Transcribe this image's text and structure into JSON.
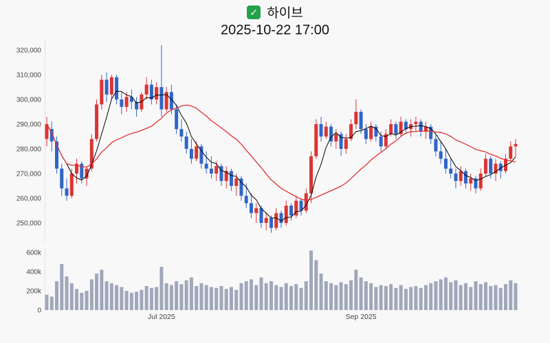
{
  "header": {
    "title": "하이브",
    "timestamp": "2025-10-22 17:00",
    "icon_glyph": "✓",
    "icon_color": "#22a14b"
  },
  "chart_data": {
    "type": "candlestick",
    "title": "하이브",
    "subtitle": "2025-10-22 17:00",
    "legend_position": "none",
    "grid": false,
    "price_axis": {
      "values": [
        320000,
        310000,
        300000,
        290000,
        280000,
        270000,
        260000,
        250000
      ],
      "labels": [
        "320,000",
        "310,000",
        "300,000",
        "290,000",
        "280,000",
        "270,000",
        "260,000",
        "250,000"
      ],
      "ylim": [
        243000,
        325000
      ]
    },
    "volume_axis": {
      "values": [
        600000,
        400000,
        200000,
        0
      ],
      "labels": [
        "600k",
        "400k",
        "200k",
        "0"
      ],
      "ylim": [
        0,
        640000
      ]
    },
    "x_ticks": [
      {
        "index": 23,
        "label": "Jul 2025"
      },
      {
        "index": 63,
        "label": "Sep 2025"
      }
    ],
    "colors": {
      "up": "#dc3434",
      "down": "#2f66c6",
      "volume": "#a0a7ba",
      "tick_text": "#444444",
      "axis_line": "#e2e2e6"
    },
    "moving_averages": [
      {
        "name": "MA5",
        "window": 5,
        "color": "#000000",
        "width": 1
      },
      {
        "name": "MA20",
        "window": 20,
        "color": "#e03030",
        "width": 1.3
      }
    ],
    "ohlcv": [
      [
        284000,
        293000,
        281000,
        290000,
        160000
      ],
      [
        288000,
        291000,
        279000,
        283000,
        140000
      ],
      [
        283000,
        285000,
        270000,
        272000,
        300000
      ],
      [
        272000,
        274000,
        261000,
        264000,
        480000
      ],
      [
        264000,
        268000,
        259000,
        261000,
        350000
      ],
      [
        261000,
        272000,
        260000,
        270000,
        280000
      ],
      [
        270000,
        276000,
        266000,
        274000,
        220000
      ],
      [
        274000,
        275000,
        266000,
        268000,
        180000
      ],
      [
        268000,
        273000,
        265000,
        272000,
        200000
      ],
      [
        272000,
        286000,
        271000,
        284000,
        320000
      ],
      [
        284000,
        300000,
        283000,
        298000,
        380000
      ],
      [
        298000,
        310000,
        296000,
        308000,
        420000
      ],
      [
        308000,
        311000,
        299000,
        302000,
        300000
      ],
      [
        302000,
        310000,
        300000,
        309000,
        280000
      ],
      [
        309000,
        310000,
        298000,
        300000,
        260000
      ],
      [
        300000,
        303000,
        294000,
        297000,
        240000
      ],
      [
        297000,
        303000,
        295000,
        301000,
        200000
      ],
      [
        301000,
        304000,
        296000,
        299000,
        180000
      ],
      [
        299000,
        301000,
        293000,
        296000,
        190000
      ],
      [
        296000,
        303000,
        295000,
        302000,
        210000
      ],
      [
        302000,
        309000,
        300000,
        306000,
        250000
      ],
      [
        306000,
        308000,
        298000,
        300000,
        230000
      ],
      [
        300000,
        307000,
        298000,
        305000,
        240000
      ],
      [
        305000,
        322000,
        293000,
        296000,
        450000
      ],
      [
        296000,
        305000,
        295000,
        303000,
        280000
      ],
      [
        303000,
        306000,
        294000,
        296000,
        260000
      ],
      [
        296000,
        298000,
        286000,
        288000,
        300000
      ],
      [
        288000,
        292000,
        283000,
        285000,
        270000
      ],
      [
        285000,
        287000,
        278000,
        280000,
        310000
      ],
      [
        280000,
        284000,
        274000,
        276000,
        340000
      ],
      [
        276000,
        283000,
        275000,
        281000,
        250000
      ],
      [
        281000,
        282000,
        272000,
        274000,
        280000
      ],
      [
        274000,
        279000,
        270000,
        272000,
        260000
      ],
      [
        272000,
        277000,
        268000,
        270000,
        240000
      ],
      [
        270000,
        275000,
        267000,
        273000,
        230000
      ],
      [
        273000,
        274000,
        265000,
        267000,
        250000
      ],
      [
        267000,
        273000,
        264000,
        271000,
        220000
      ],
      [
        271000,
        272000,
        263000,
        265000,
        240000
      ],
      [
        265000,
        270000,
        261000,
        268000,
        210000
      ],
      [
        268000,
        269000,
        259000,
        261000,
        280000
      ],
      [
        261000,
        266000,
        256000,
        258000,
        300000
      ],
      [
        258000,
        262000,
        252000,
        254000,
        320000
      ],
      [
        254000,
        258000,
        250000,
        256000,
        260000
      ],
      [
        256000,
        257000,
        248000,
        250000,
        340000
      ],
      [
        250000,
        254000,
        247000,
        252000,
        280000
      ],
      [
        252000,
        253000,
        246000,
        248000,
        300000
      ],
      [
        248000,
        256000,
        247000,
        254000,
        260000
      ],
      [
        254000,
        255000,
        248000,
        250000,
        240000
      ],
      [
        250000,
        259000,
        249000,
        257000,
        280000
      ],
      [
        257000,
        258000,
        251000,
        253000,
        250000
      ],
      [
        253000,
        261000,
        252000,
        259000,
        270000
      ],
      [
        259000,
        260000,
        253000,
        255000,
        230000
      ],
      [
        255000,
        264000,
        254000,
        262000,
        300000
      ],
      [
        262000,
        279000,
        258000,
        277000,
        620000
      ],
      [
        277000,
        292000,
        276000,
        290000,
        520000
      ],
      [
        290000,
        293000,
        283000,
        285000,
        380000
      ],
      [
        285000,
        291000,
        284000,
        289000,
        300000
      ],
      [
        289000,
        290000,
        281000,
        283000,
        280000
      ],
      [
        283000,
        288000,
        280000,
        286000,
        260000
      ],
      [
        286000,
        287000,
        277000,
        280000,
        290000
      ],
      [
        280000,
        286000,
        278000,
        284000,
        270000
      ],
      [
        284000,
        292000,
        283000,
        290000,
        310000
      ],
      [
        290000,
        300000,
        288000,
        295000,
        420000
      ],
      [
        295000,
        296000,
        286000,
        288000,
        340000
      ],
      [
        288000,
        290000,
        282000,
        284000,
        300000
      ],
      [
        284000,
        291000,
        283000,
        289000,
        280000
      ],
      [
        289000,
        290000,
        283000,
        285000,
        240000
      ],
      [
        285000,
        287000,
        279000,
        281000,
        260000
      ],
      [
        281000,
        288000,
        280000,
        286000,
        250000
      ],
      [
        286000,
        292000,
        285000,
        290000,
        270000
      ],
      [
        290000,
        291000,
        284000,
        286000,
        230000
      ],
      [
        286000,
        293000,
        285000,
        291000,
        260000
      ],
      [
        291000,
        292000,
        286000,
        288000,
        220000
      ],
      [
        288000,
        292000,
        285000,
        290000,
        240000
      ],
      [
        290000,
        293000,
        287000,
        291000,
        250000
      ],
      [
        291000,
        292000,
        285000,
        287000,
        230000
      ],
      [
        287000,
        291000,
        284000,
        289000,
        260000
      ],
      [
        289000,
        290000,
        282000,
        284000,
        280000
      ],
      [
        284000,
        286000,
        277000,
        279000,
        300000
      ],
      [
        279000,
        283000,
        274000,
        276000,
        320000
      ],
      [
        276000,
        280000,
        270000,
        272000,
        340000
      ],
      [
        272000,
        276000,
        268000,
        270000,
        290000
      ],
      [
        270000,
        272000,
        264000,
        267000,
        310000
      ],
      [
        267000,
        273000,
        265000,
        271000,
        260000
      ],
      [
        271000,
        272000,
        264000,
        266000,
        280000
      ],
      [
        266000,
        270000,
        263000,
        268000,
        240000
      ],
      [
        268000,
        269000,
        262000,
        264000,
        300000
      ],
      [
        264000,
        272000,
        263000,
        270000,
        270000
      ],
      [
        270000,
        278000,
        269000,
        276000,
        290000
      ],
      [
        276000,
        277000,
        268000,
        270000,
        250000
      ],
      [
        270000,
        276000,
        267000,
        274000,
        260000
      ],
      [
        274000,
        275000,
        268000,
        271000,
        230000
      ],
      [
        271000,
        278000,
        270000,
        276000,
        270000
      ],
      [
        276000,
        283000,
        275000,
        281000,
        310000
      ],
      [
        281000,
        284000,
        277000,
        282000,
        280000
      ]
    ]
  }
}
